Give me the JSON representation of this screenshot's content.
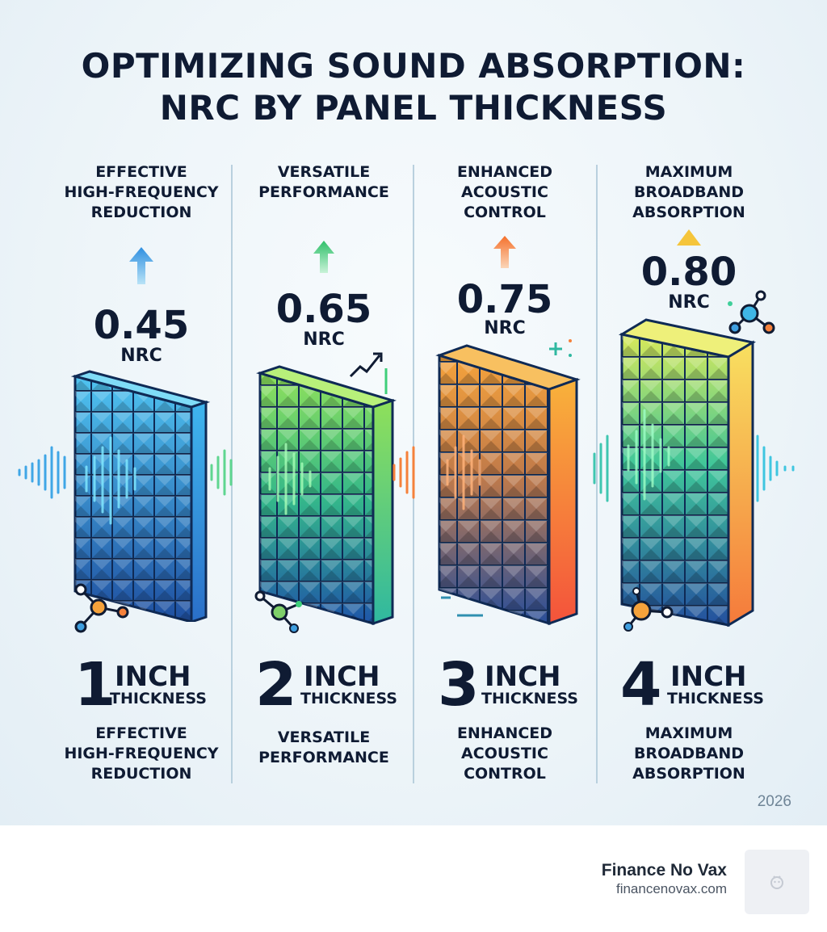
{
  "title": {
    "line1": "OPTIMIZING SOUND ABSORPTION:",
    "line2": "NRC BY PANEL THICKNESS"
  },
  "columns": [
    {
      "top_label": [
        "EFFECTIVE",
        "HIGH-FREQUENCY",
        "REDUCTION"
      ],
      "nrc_value": "0.45",
      "nrc_unit": "NRC",
      "thickness_number": "1",
      "thickness_unit": "INCH",
      "thickness_word": "THICKNESS",
      "bottom_label": [
        "EFFECTIVE",
        "HIGH-FREQUENCY",
        "REDUCTION"
      ],
      "accent": "#3b9fe0"
    },
    {
      "top_label": [
        "VERSATILE",
        "PERFORMANCE"
      ],
      "nrc_value": "0.65",
      "nrc_unit": "NRC",
      "thickness_number": "2",
      "thickness_unit": "INCH",
      "thickness_word": "THICKNESS",
      "bottom_label": [
        "VERSATILE",
        "PERFORMANCE"
      ],
      "accent": "#3fcf7a"
    },
    {
      "top_label": [
        "ENHANCED",
        "ACOUSTIC",
        "CONTROL"
      ],
      "nrc_value": "0.75",
      "nrc_unit": "NRC",
      "thickness_number": "3",
      "thickness_unit": "INCH",
      "thickness_word": "THICKNESS",
      "bottom_label": [
        "ENHANCED",
        "ACOUSTIC",
        "CONTROL"
      ],
      "accent": "#f5813b"
    },
    {
      "top_label": [
        "MAXIMUM",
        "BROADBAND",
        "ABSORPTION"
      ],
      "nrc_value": "0.80",
      "nrc_unit": "NRC",
      "thickness_number": "4",
      "thickness_unit": "INCH",
      "thickness_word": "THICKNESS",
      "bottom_label": [
        "MAXIMUM",
        "BROADBAND",
        "ABSORPTION"
      ],
      "accent": "#f5c53b"
    }
  ],
  "year": "2026",
  "brand": {
    "name": "Finance No Vax",
    "url": "financenovax.com"
  },
  "icons": [
    "arrow-up-icon",
    "triangle-icon",
    "trend-up-icon",
    "molecule-icon",
    "sound-wave-icon",
    "acoustic-panel-icon"
  ]
}
